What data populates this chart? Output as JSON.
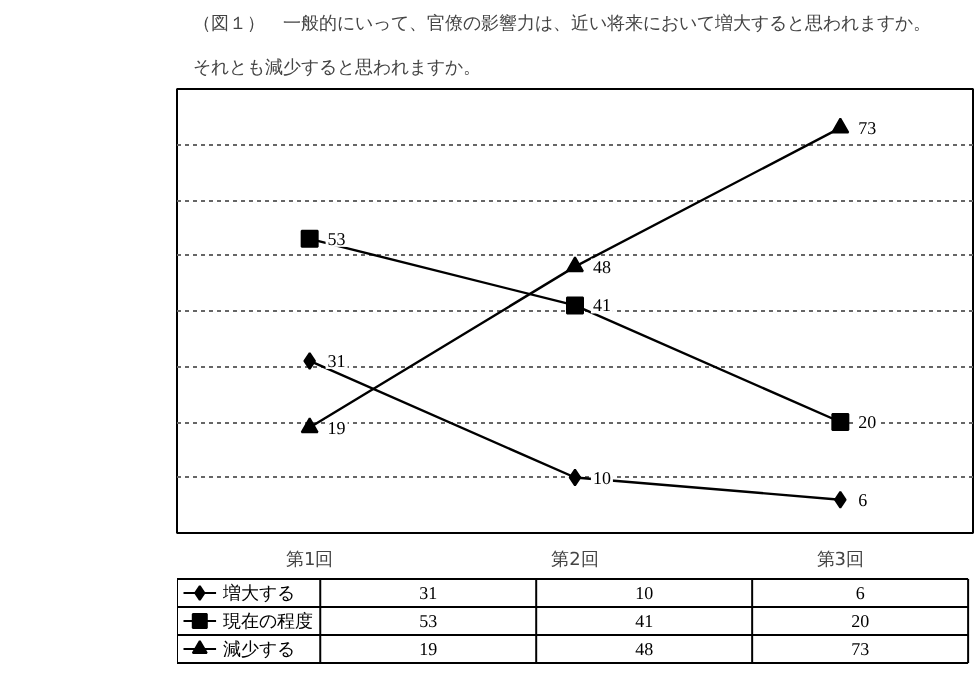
{
  "chart_data": {
    "type": "line",
    "title": "（図１）　一般的にいって、官僚の影響力は、近い将来において増大すると思われますか。",
    "subtitle": "それとも減少すると思われますか。",
    "categories": [
      "第1回",
      "第2回",
      "第3回"
    ],
    "series": [
      {
        "name": "増大する",
        "color": "#000000",
        "marker": "diamond",
        "values": [
          31,
          10,
          6
        ]
      },
      {
        "name": "現在の程度",
        "color": "#000000",
        "marker": "square",
        "values": [
          53,
          41,
          20
        ]
      },
      {
        "name": "減少する",
        "color": "#000000",
        "marker": "triangle",
        "values": [
          19,
          48,
          73
        ]
      }
    ],
    "annotations": [
      {
        "text": "31",
        "x": "第1回",
        "y": 31
      },
      {
        "text": "10",
        "x": "第2回",
        "y": 10
      },
      {
        "text": "6",
        "x": "第3回",
        "y": 6
      },
      {
        "text": "53",
        "x": "第1回",
        "y": 53
      },
      {
        "text": "41",
        "x": "第2回",
        "y": 41
      },
      {
        "text": "20",
        "x": "第3回",
        "y": 20
      },
      {
        "text": "19",
        "x": "第1回",
        "y": 19
      },
      {
        "text": "48",
        "x": "第2回",
        "y": 48
      },
      {
        "text": "73",
        "x": "第3回",
        "y": 73
      }
    ],
    "ylim": [
      0,
      80
    ],
    "yticks": [
      {
        "value": 0,
        "label": null
      },
      {
        "value": 10,
        "label": null
      },
      {
        "value": 20,
        "label": null
      },
      {
        "value": 30,
        "label": null
      },
      {
        "value": 40,
        "label": null
      },
      {
        "value": 50,
        "label": null
      },
      {
        "value": 60,
        "label": null
      },
      {
        "value": 70,
        "label": null
      },
      {
        "value": 80,
        "label": null
      }
    ],
    "grid": "y",
    "data_labels": true,
    "tick_labels": "x",
    "legend": "bottom left",
    "line_style": "solid"
  }
}
